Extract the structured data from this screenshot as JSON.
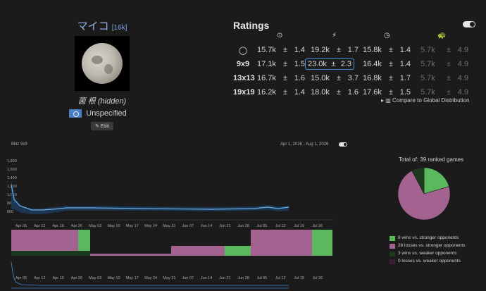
{
  "profile": {
    "username": "マイコ",
    "rank": "[16k]",
    "real_name": "菌 根 (hidden)",
    "country": "Unspecified",
    "edit_label": "Edit"
  },
  "ratings": {
    "title": "Ratings",
    "columns": [
      "overall-icon",
      "blitz-icon",
      "live-icon",
      "correspondence-icon"
    ],
    "rows": [
      {
        "label": "◯",
        "cells": [
          [
            "15.7k",
            "±",
            "1.4"
          ],
          [
            "19.2k",
            "±",
            "1.7"
          ],
          [
            "15.8k",
            "±",
            "1.4"
          ],
          [
            "5.7k",
            "±",
            "4.9"
          ]
        ]
      },
      {
        "label": "9x9",
        "cells": [
          [
            "17.1k",
            "±",
            "1.5"
          ],
          [
            "23.0k",
            "±",
            "2.3"
          ],
          [
            "16.4k",
            "±",
            "1.4"
          ],
          [
            "5.7k",
            "±",
            "4.9"
          ]
        ]
      },
      {
        "label": "13x13",
        "cells": [
          [
            "16.7k",
            "±",
            "1.6"
          ],
          [
            "15.0k",
            "±",
            "3.7"
          ],
          [
            "16.8k",
            "±",
            "1.7"
          ],
          [
            "5.7k",
            "±",
            "4.9"
          ]
        ]
      },
      {
        "label": "19x19",
        "cells": [
          [
            "16.2k",
            "±",
            "1.4"
          ],
          [
            "18.0k",
            "±",
            "1.6"
          ],
          [
            "17.6k",
            "±",
            "1.5"
          ],
          [
            "5.7k",
            "±",
            "4.9"
          ]
        ]
      }
    ],
    "compare_label": "Compare to Global Distribution"
  },
  "history": {
    "title": "Blitz 9x9",
    "date_range": "Apr 1, 2026 - Aug 1, 2026",
    "y_ticks": [
      "1,800",
      "1,600",
      "1,400",
      "1,200",
      "1,000",
      "800",
      "600"
    ],
    "x_ticks": [
      "Apr 05",
      "Apr 12",
      "Apr 19",
      "Apr 26",
      "May 03",
      "May 10",
      "May 17",
      "May 24",
      "May 31",
      "Jun 07",
      "Jun 14",
      "Jun 21",
      "Jun 28",
      "Jul 05",
      "Jul 12",
      "Jul 19",
      "Jul 26"
    ]
  },
  "chart_data": {
    "type": "pie",
    "title": "Total of: 39 ranked games",
    "categories": [
      "8 wins vs. stronger opponents",
      "28 losses vs. stronger opponents",
      "3 wins vs. weaker opponents",
      "0 losses vs. weaker opponents"
    ],
    "values": [
      8,
      28,
      3,
      0
    ],
    "colors": [
      "#5cb85c",
      "#a3628f",
      "#1e3a1e",
      "#3a1f34"
    ]
  },
  "colors": {
    "accent": "#4a8fd8",
    "rating_line": "#6aaee8"
  }
}
